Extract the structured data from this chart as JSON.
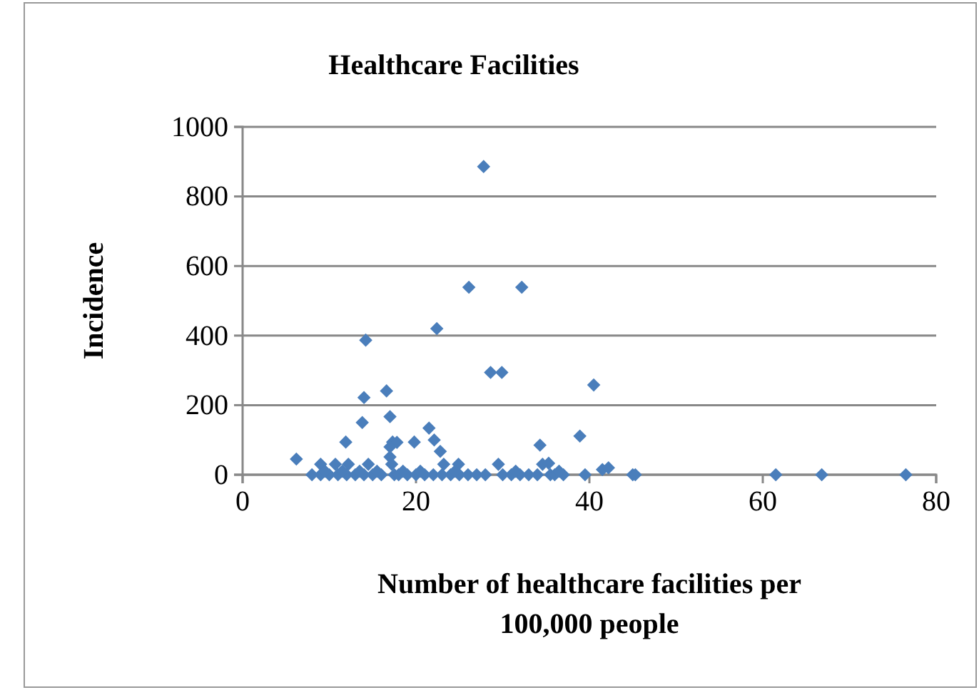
{
  "chart_data": {
    "type": "scatter",
    "title": "Healthcare Facilities",
    "xlabel": "Number of healthcare facilities per 100,000 people",
    "ylabel": "Incidence",
    "xlim": [
      0,
      80
    ],
    "xticks": [
      0,
      20,
      40,
      60,
      80
    ],
    "ylim": [
      0,
      1000
    ],
    "yticks": [
      0,
      200,
      400,
      600,
      800,
      1000
    ],
    "grid": "y",
    "marker": "diamond",
    "series": [
      {
        "color": "#4a7ebb",
        "x": [
          27.8,
          26.1,
          32.2,
          22.4,
          14.2,
          28.6,
          29.9,
          40.5,
          16.6,
          14.0,
          17.0,
          13.8,
          21.5,
          38.9,
          22.1,
          11.9,
          19.8,
          17.3,
          17.8,
          34.3,
          17.0,
          22.8,
          6.2,
          17.0,
          9.0,
          10.7,
          12.2,
          14.5,
          17.2,
          23.2,
          24.9,
          29.5,
          34.6,
          41.5,
          42.2,
          35.3,
          61.5,
          66.8,
          76.5,
          39.5,
          45.0,
          45.3,
          8.0,
          9.0,
          10.0,
          11.0,
          12.0,
          13.0,
          14.0,
          15.0,
          16.0,
          17.5,
          18.0,
          19.0,
          20.0,
          21.0,
          22.0,
          23.0,
          24.0,
          25.0,
          26.0,
          27.0,
          28.0,
          30.0,
          31.0,
          32.0,
          33.0,
          34.0,
          35.5,
          36.0,
          37.0,
          9.5,
          11.5,
          13.5,
          15.5,
          18.5,
          20.5,
          24.5,
          31.5,
          36.5
        ],
        "values": [
          886,
          539,
          539,
          420,
          387,
          294,
          294,
          258,
          241,
          222,
          167,
          150,
          134,
          111,
          100,
          94,
          94,
          94,
          93,
          85,
          80,
          67,
          45,
          51,
          30,
          30,
          30,
          30,
          30,
          30,
          30,
          30,
          30,
          15,
          20,
          33,
          0,
          0,
          0,
          0,
          0,
          0,
          0,
          0,
          0,
          0,
          0,
          0,
          0,
          0,
          0,
          0,
          0,
          0,
          0,
          0,
          0,
          0,
          0,
          0,
          0,
          0,
          0,
          0,
          0,
          0,
          0,
          0,
          0,
          0,
          0,
          10,
          10,
          10,
          10,
          10,
          10,
          10,
          10,
          10
        ]
      }
    ]
  }
}
